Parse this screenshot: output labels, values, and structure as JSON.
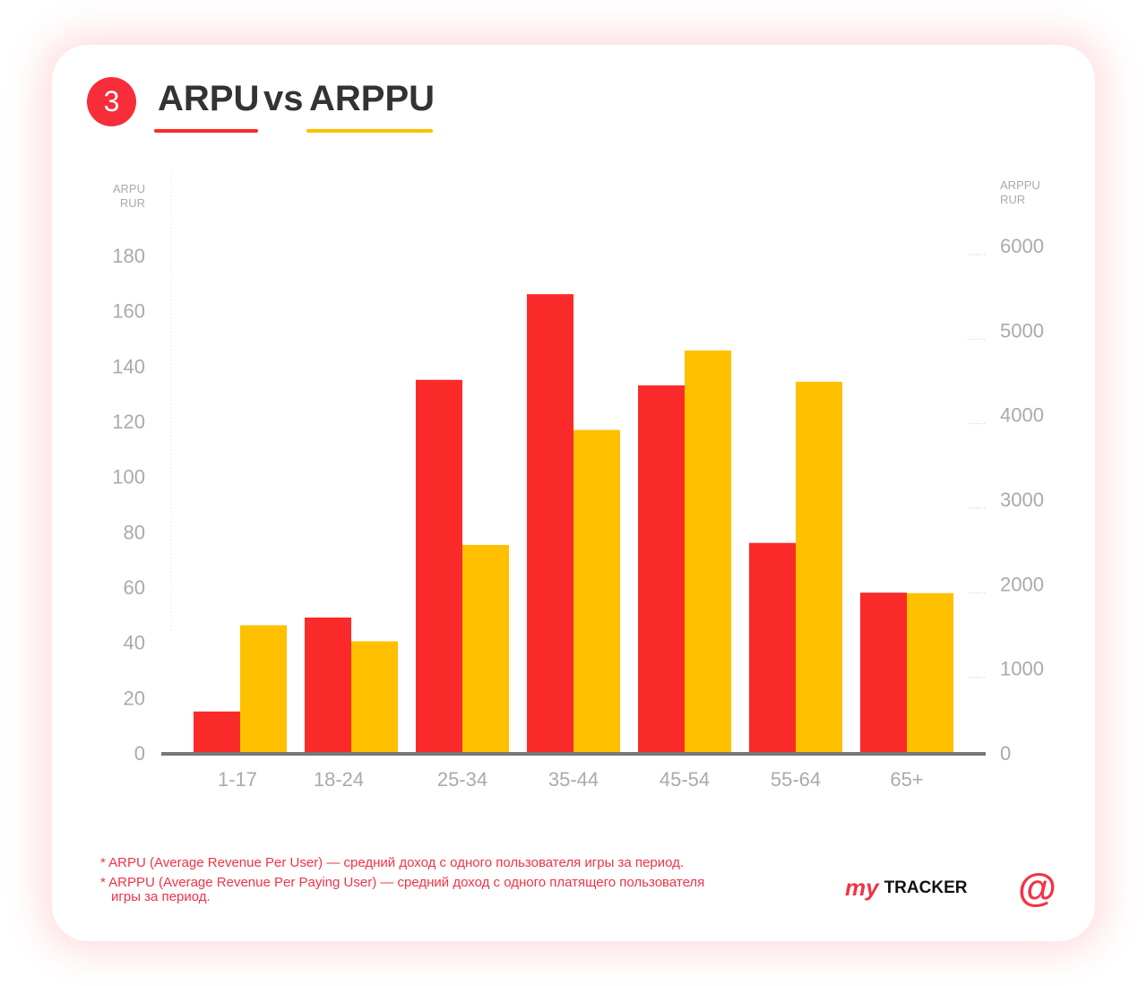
{
  "header": {
    "number": "3",
    "title_arpu": "ARPU",
    "title_vs": "vs",
    "title_arppu": "ARPPU"
  },
  "colors": {
    "arpu": "#fb2a2a",
    "arppu": "#ffc000"
  },
  "chart_data": {
    "type": "bar",
    "title": "ARPU vs ARPPU",
    "categories": [
      "1-17",
      "18-24",
      "25-34",
      "35-44",
      "45-54",
      "55-64",
      "65+"
    ],
    "series": [
      {
        "name": "ARPU",
        "axis": "left",
        "values": [
          15,
          49,
          135,
          166,
          133,
          76,
          58
        ]
      },
      {
        "name": "ARPPU",
        "axis": "right",
        "values": [
          1510,
          1320,
          2460,
          3820,
          4760,
          4390,
          1890
        ]
      }
    ],
    "ylabel_left": [
      "ARPU",
      "RUR"
    ],
    "ylabel_right": [
      "ARPPU",
      "RUR"
    ],
    "ylim_left": [
      0,
      180
    ],
    "ylim_right": [
      0,
      6000
    ],
    "yticks_left": [
      "0",
      "20",
      "40",
      "60",
      "80",
      "100",
      "120",
      "140",
      "160",
      "180"
    ],
    "yticks_right": [
      "0",
      "1000",
      "2000",
      "3000",
      "4000",
      "5000",
      "6000"
    ]
  },
  "footnotes": [
    "* ARPU (Average Revenue Per User) — средний доход с одного пользователя игры за период.",
    "* ARPPU (Average Revenue Per Paying User) — средний доход с одного платящего пользователя",
    "игры за период."
  ],
  "logo": {
    "my": "my",
    "tracker": "TRACKER",
    "at": "@"
  }
}
